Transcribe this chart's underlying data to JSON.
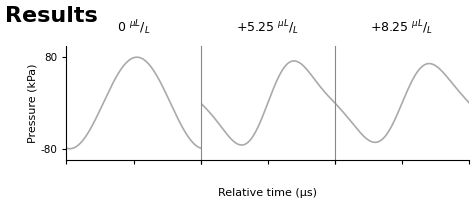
{
  "title": "Results",
  "ylabel": "Pressure (kPa)",
  "xlabel": "Relative time (μs)",
  "yticks": [
    -80,
    80
  ],
  "yticklabels": [
    "-80",
    "80"
  ],
  "ylim": [
    -100,
    100
  ],
  "panel_label_texts": [
    "$0\\ ^{\\mu L}/_{L}$",
    "$+5.25\\ ^{\\mu L}/_{L}$",
    "$+8.25\\ ^{\\mu L}/_{L}$"
  ],
  "line_color": "#aaaaaa",
  "line_width": 1.2,
  "background_color": "#ffffff",
  "divider_color": "#888888",
  "title_fontsize": 16,
  "title_fontweight": "bold",
  "label_fontsize": 8,
  "tick_fontsize": 7.5,
  "panel_label_fontsize": 9
}
